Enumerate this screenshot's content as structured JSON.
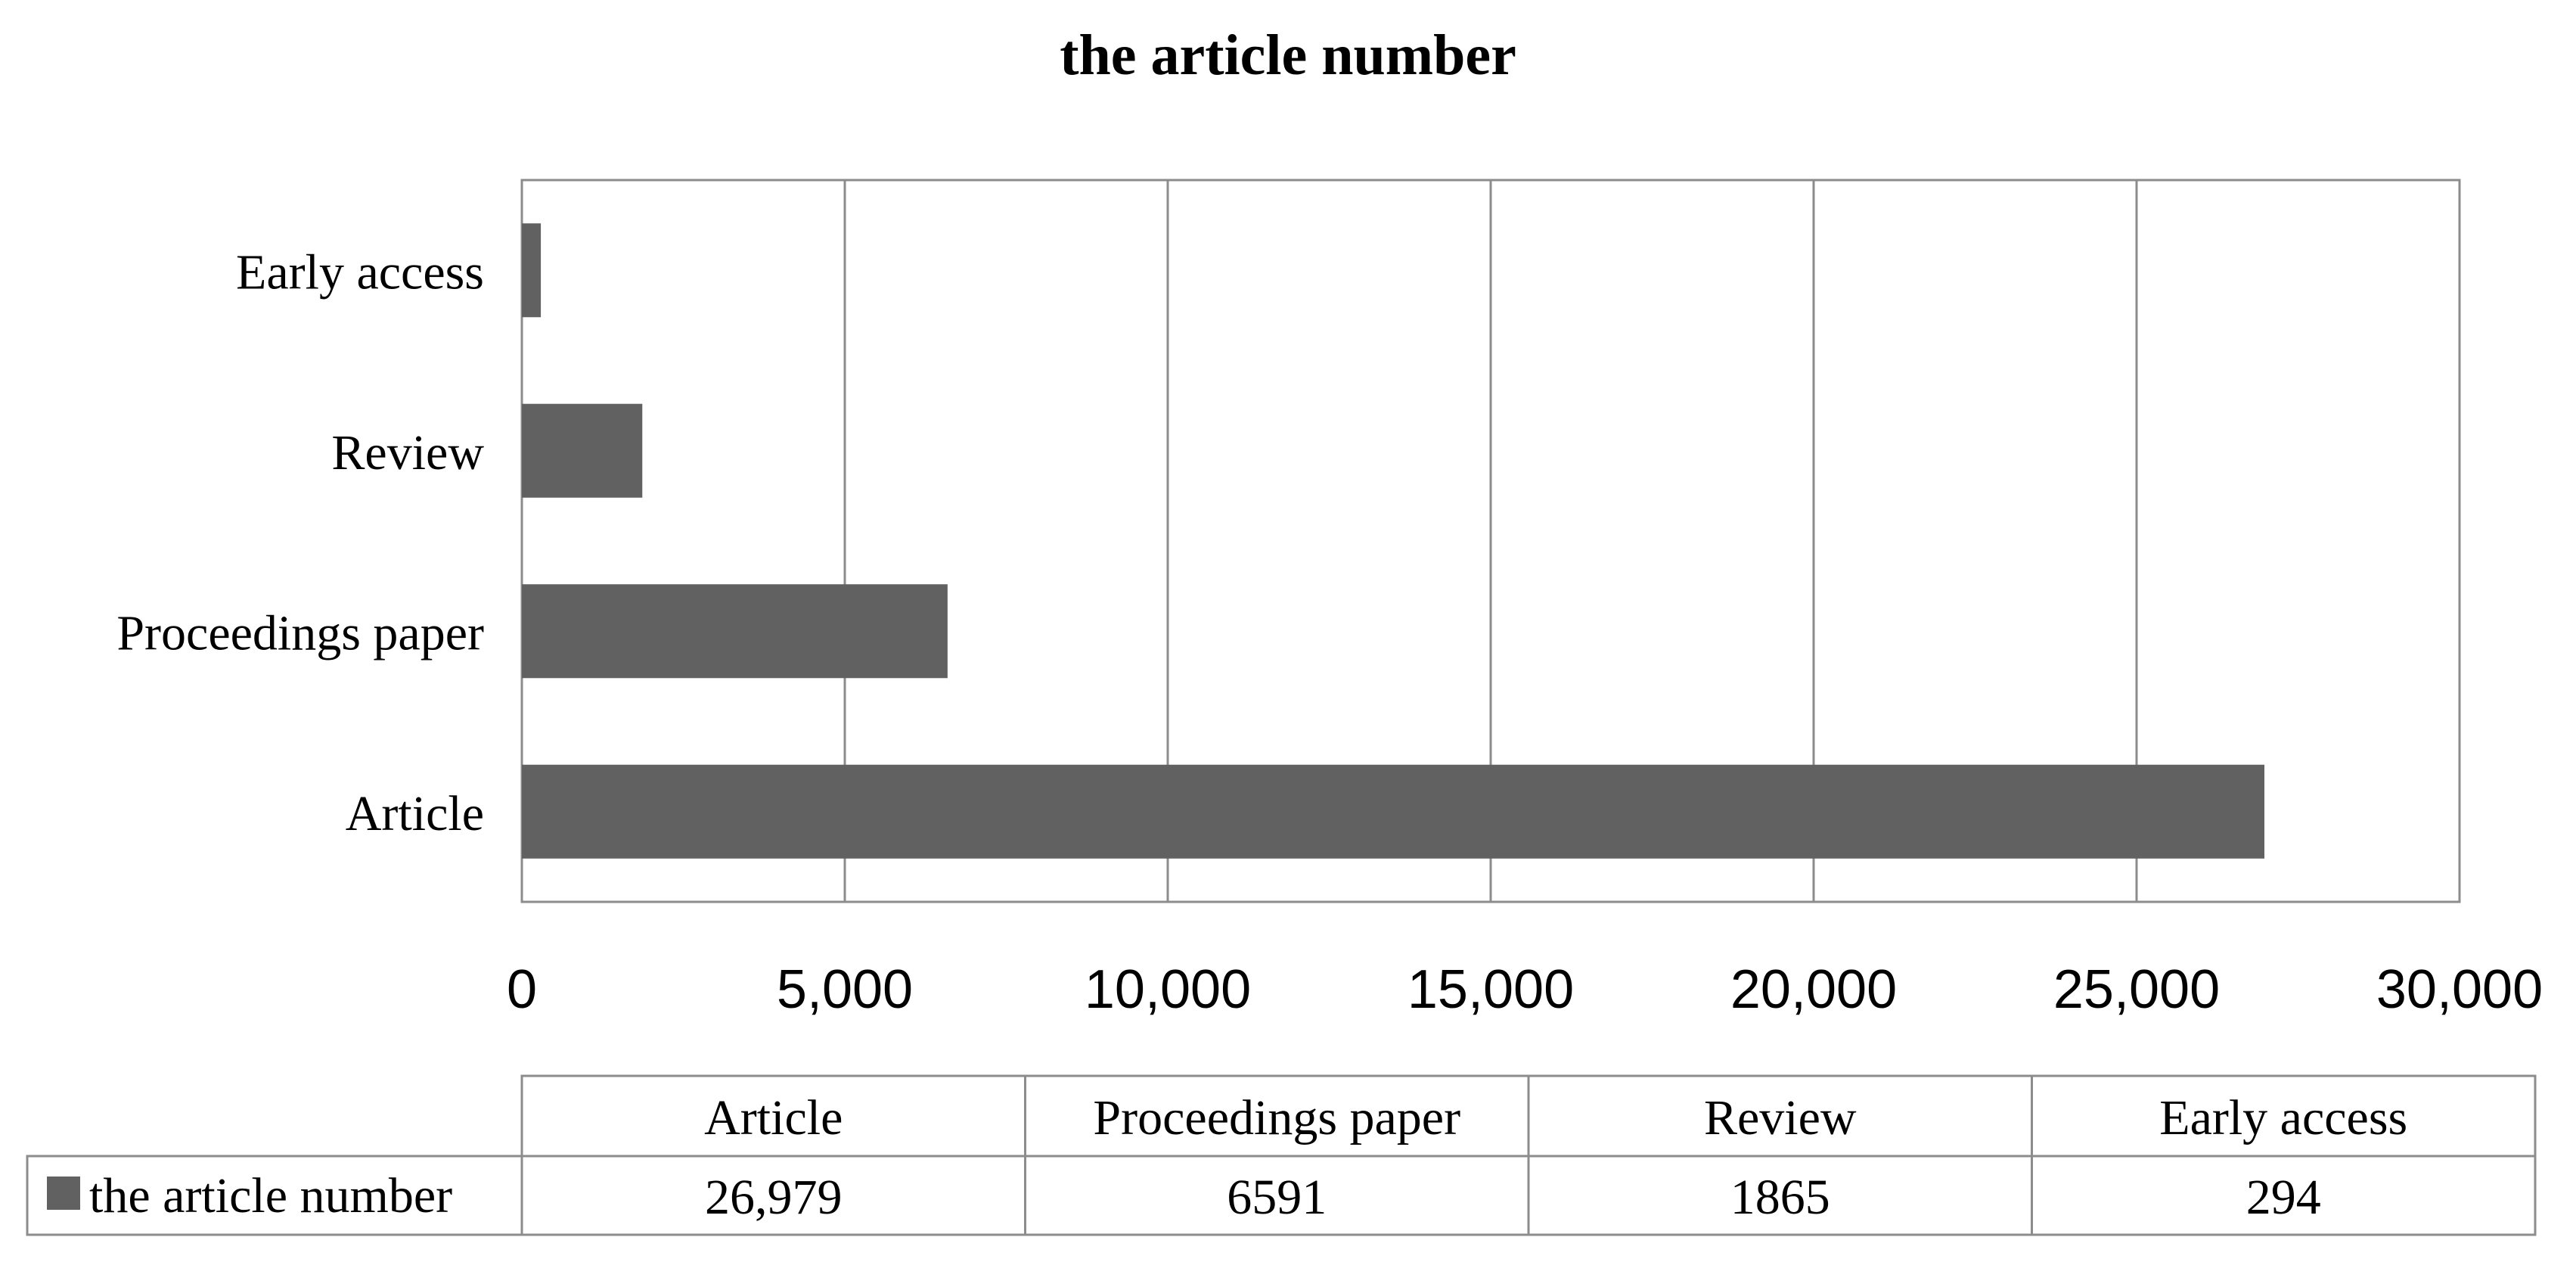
{
  "chart_data": {
    "type": "bar",
    "orientation": "horizontal",
    "title": "the article number",
    "categories": [
      "Article",
      "Proceedings paper",
      "Review",
      "Early access"
    ],
    "series": [
      {
        "name": "the article number",
        "values": [
          26979,
          6591,
          1865,
          294
        ],
        "value_labels": [
          "26,979",
          "6591",
          "1865",
          "294"
        ],
        "color": "#616161"
      }
    ],
    "xlim": [
      0,
      30000
    ],
    "x_ticks": [
      0,
      5000,
      10000,
      15000,
      20000,
      25000,
      30000
    ],
    "x_tick_labels": [
      "0",
      "5,000",
      "10,000",
      "15,000",
      "20,000",
      "25,000",
      "30,000"
    ],
    "xlabel": "",
    "ylabel": "",
    "grid": true,
    "legend": "data-table-below",
    "data_table": true
  }
}
